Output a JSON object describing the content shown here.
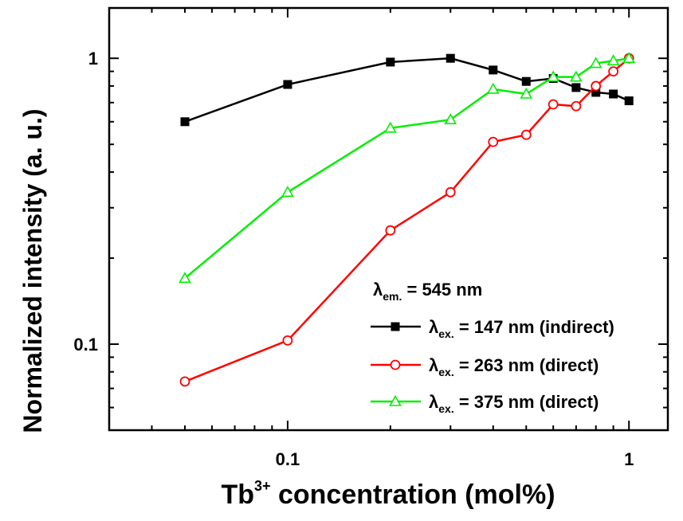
{
  "chart_data": {
    "type": "line",
    "x_scale": "log",
    "y_scale": "log",
    "xlim": [
      0.03,
      1.3
    ],
    "ylim": [
      0.05,
      1.5
    ],
    "xlabel": {
      "main": "Tb",
      "sup": "3+",
      "rest": " concentration (mol%)"
    },
    "ylabel": "Normalized intensity (a. u.)",
    "x_ticks": [
      {
        "value": 0.1,
        "label": "0.1"
      },
      {
        "value": 1,
        "label": "1"
      }
    ],
    "y_ticks": [
      {
        "value": 0.1,
        "label": "0.1"
      },
      {
        "value": 1,
        "label": "1"
      }
    ],
    "grid": false,
    "legend_position": "bottom-right",
    "legend_header": {
      "symbol": "λ",
      "sub": "em.",
      "text": " = 545 nm"
    },
    "series": [
      {
        "name": {
          "symbol": "λ",
          "sub": "ex.",
          "text": " = 147 nm (indirect)"
        },
        "color": "#000000",
        "marker": "filled-square",
        "x": [
          0.05,
          0.1,
          0.2,
          0.3,
          0.4,
          0.5,
          0.6,
          0.7,
          0.8,
          0.9,
          1.0
        ],
        "y": [
          0.6,
          0.81,
          0.97,
          1.0,
          0.91,
          0.83,
          0.85,
          0.79,
          0.76,
          0.75,
          0.71
        ]
      },
      {
        "name": {
          "symbol": "λ",
          "sub": "ex.",
          "text": " = 263 nm (direct)"
        },
        "color": "#ff0000",
        "marker": "open-circle",
        "x": [
          0.05,
          0.1,
          0.2,
          0.3,
          0.4,
          0.5,
          0.6,
          0.7,
          0.8,
          0.9,
          1.0
        ],
        "y": [
          0.074,
          0.103,
          0.25,
          0.34,
          0.51,
          0.54,
          0.69,
          0.68,
          0.8,
          0.9,
          1.0
        ]
      },
      {
        "name": {
          "symbol": "λ",
          "sub": "ex.",
          "text": " = 375 nm (direct)"
        },
        "color": "#00ee00",
        "marker": "open-triangle",
        "x": [
          0.05,
          0.1,
          0.2,
          0.3,
          0.4,
          0.5,
          0.6,
          0.7,
          0.8,
          0.9,
          1.0
        ],
        "y": [
          0.17,
          0.34,
          0.57,
          0.61,
          0.78,
          0.75,
          0.86,
          0.86,
          0.96,
          0.98,
          1.0
        ]
      }
    ]
  }
}
